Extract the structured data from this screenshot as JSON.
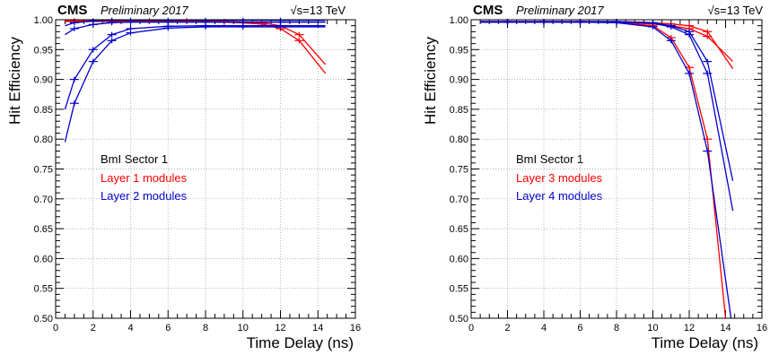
{
  "chart_data": [
    {
      "type": "line",
      "header": {
        "experiment": "CMS",
        "status": "Preliminary 2017",
        "energy": "√s=13 TeV"
      },
      "xlabel": "Time Delay (ns)",
      "ylabel": "Hit Efficiency",
      "xlim": [
        0,
        16
      ],
      "ylim": [
        0.5,
        1.0
      ],
      "xticks": [
        "0",
        "2",
        "4",
        "6",
        "8",
        "10",
        "12",
        "14",
        "16"
      ],
      "yticks": [
        "0.50",
        "0.55",
        "0.60",
        "0.65",
        "0.70",
        "0.75",
        "0.80",
        "0.85",
        "0.90",
        "0.95",
        "1.00"
      ],
      "grid": true,
      "legend": {
        "title": "BmI Sector 1",
        "entries": [
          {
            "label": "Layer 1 modules",
            "color": "#ff0000"
          },
          {
            "label": "Layer 2 modules",
            "color": "#0000cc"
          }
        ]
      },
      "series": [
        {
          "color": "#ff0000",
          "x": [
            0.5,
            1,
            3,
            5,
            7,
            9,
            11,
            12,
            13,
            14.4
          ],
          "y": [
            0.998,
            0.998,
            0.998,
            0.998,
            0.998,
            0.997,
            0.995,
            0.99,
            0.975,
            0.925
          ]
        },
        {
          "color": "#ff0000",
          "x": [
            0.5,
            1,
            3,
            5,
            7,
            9,
            11,
            12,
            13,
            14.4
          ],
          "y": [
            0.997,
            0.997,
            0.997,
            0.997,
            0.997,
            0.996,
            0.993,
            0.985,
            0.965,
            0.91
          ]
        },
        {
          "color": "#0000cc",
          "x": [
            0.5,
            1,
            2,
            3,
            4,
            6,
            8,
            10,
            12,
            14.4
          ],
          "y": [
            0.99,
            0.995,
            0.998,
            0.999,
            0.999,
            0.999,
            0.999,
            0.999,
            0.999,
            0.999
          ]
        },
        {
          "color": "#0000cc",
          "x": [
            0.5,
            1,
            2,
            3,
            4,
            6,
            8,
            10,
            12,
            14.4
          ],
          "y": [
            0.975,
            0.985,
            0.992,
            0.995,
            0.996,
            0.996,
            0.996,
            0.996,
            0.996,
            0.996
          ]
        },
        {
          "color": "#0000cc",
          "x": [
            0.5,
            1,
            2,
            3,
            4,
            6,
            8,
            10,
            12,
            14.4
          ],
          "y": [
            0.85,
            0.9,
            0.95,
            0.975,
            0.985,
            0.989,
            0.99,
            0.99,
            0.99,
            0.99
          ]
        },
        {
          "color": "#0000cc",
          "x": [
            0.5,
            1,
            2,
            3,
            4,
            6,
            8,
            10,
            12,
            14.4
          ],
          "y": [
            0.795,
            0.86,
            0.93,
            0.965,
            0.978,
            0.986,
            0.988,
            0.988,
            0.988,
            0.988
          ]
        }
      ]
    },
    {
      "type": "line",
      "header": {
        "experiment": "CMS",
        "status": "Preliminary 2017",
        "energy": "√s=13 TeV"
      },
      "xlabel": "Time Delay (ns)",
      "ylabel": "Hit Efficiency",
      "xlim": [
        0,
        16
      ],
      "ylim": [
        0.5,
        1.0
      ],
      "xticks": [
        "0",
        "2",
        "4",
        "6",
        "8",
        "10",
        "12",
        "14",
        "16"
      ],
      "yticks": [
        "0.50",
        "0.55",
        "0.60",
        "0.65",
        "0.70",
        "0.75",
        "0.80",
        "0.85",
        "0.90",
        "0.95",
        "1.00"
      ],
      "grid": true,
      "legend": {
        "title": "BmI Sector 1",
        "entries": [
          {
            "label": "Layer 3 modules",
            "color": "#ff0000"
          },
          {
            "label": "Layer 4 modules",
            "color": "#0000cc"
          }
        ]
      },
      "series": [
        {
          "color": "#ff0000",
          "x": [
            0.5,
            2,
            4,
            6,
            8,
            10,
            11,
            12,
            13,
            14.4
          ],
          "y": [
            0.997,
            0.997,
            0.997,
            0.997,
            0.997,
            0.995,
            0.993,
            0.99,
            0.98,
            0.918
          ]
        },
        {
          "color": "#ff0000",
          "x": [
            0.5,
            2,
            4,
            6,
            8,
            10,
            11,
            12,
            13,
            14.4
          ],
          "y": [
            0.996,
            0.996,
            0.996,
            0.996,
            0.996,
            0.993,
            0.99,
            0.985,
            0.972,
            0.93
          ]
        },
        {
          "color": "#ff0000",
          "x": [
            0.5,
            2,
            4,
            6,
            8,
            10,
            11,
            12,
            13,
            14
          ],
          "y": [
            0.997,
            0.997,
            0.997,
            0.997,
            0.996,
            0.99,
            0.97,
            0.92,
            0.8,
            0.5
          ]
        },
        {
          "color": "#0000cc",
          "x": [
            0.5,
            2,
            4,
            6,
            8,
            10,
            11,
            12,
            13,
            14.4
          ],
          "y": [
            0.997,
            0.997,
            0.997,
            0.997,
            0.997,
            0.995,
            0.99,
            0.98,
            0.93,
            0.73
          ]
        },
        {
          "color": "#0000cc",
          "x": [
            0.5,
            2,
            4,
            6,
            8,
            10,
            11,
            12,
            13,
            14.4
          ],
          "y": [
            0.996,
            0.996,
            0.996,
            0.996,
            0.996,
            0.994,
            0.988,
            0.975,
            0.91,
            0.68
          ]
        },
        {
          "color": "#0000cc",
          "x": [
            0.5,
            2,
            4,
            6,
            8,
            10,
            11,
            12,
            13,
            14.3
          ],
          "y": [
            0.996,
            0.996,
            0.996,
            0.996,
            0.995,
            0.988,
            0.965,
            0.91,
            0.78,
            0.5
          ]
        }
      ]
    }
  ]
}
